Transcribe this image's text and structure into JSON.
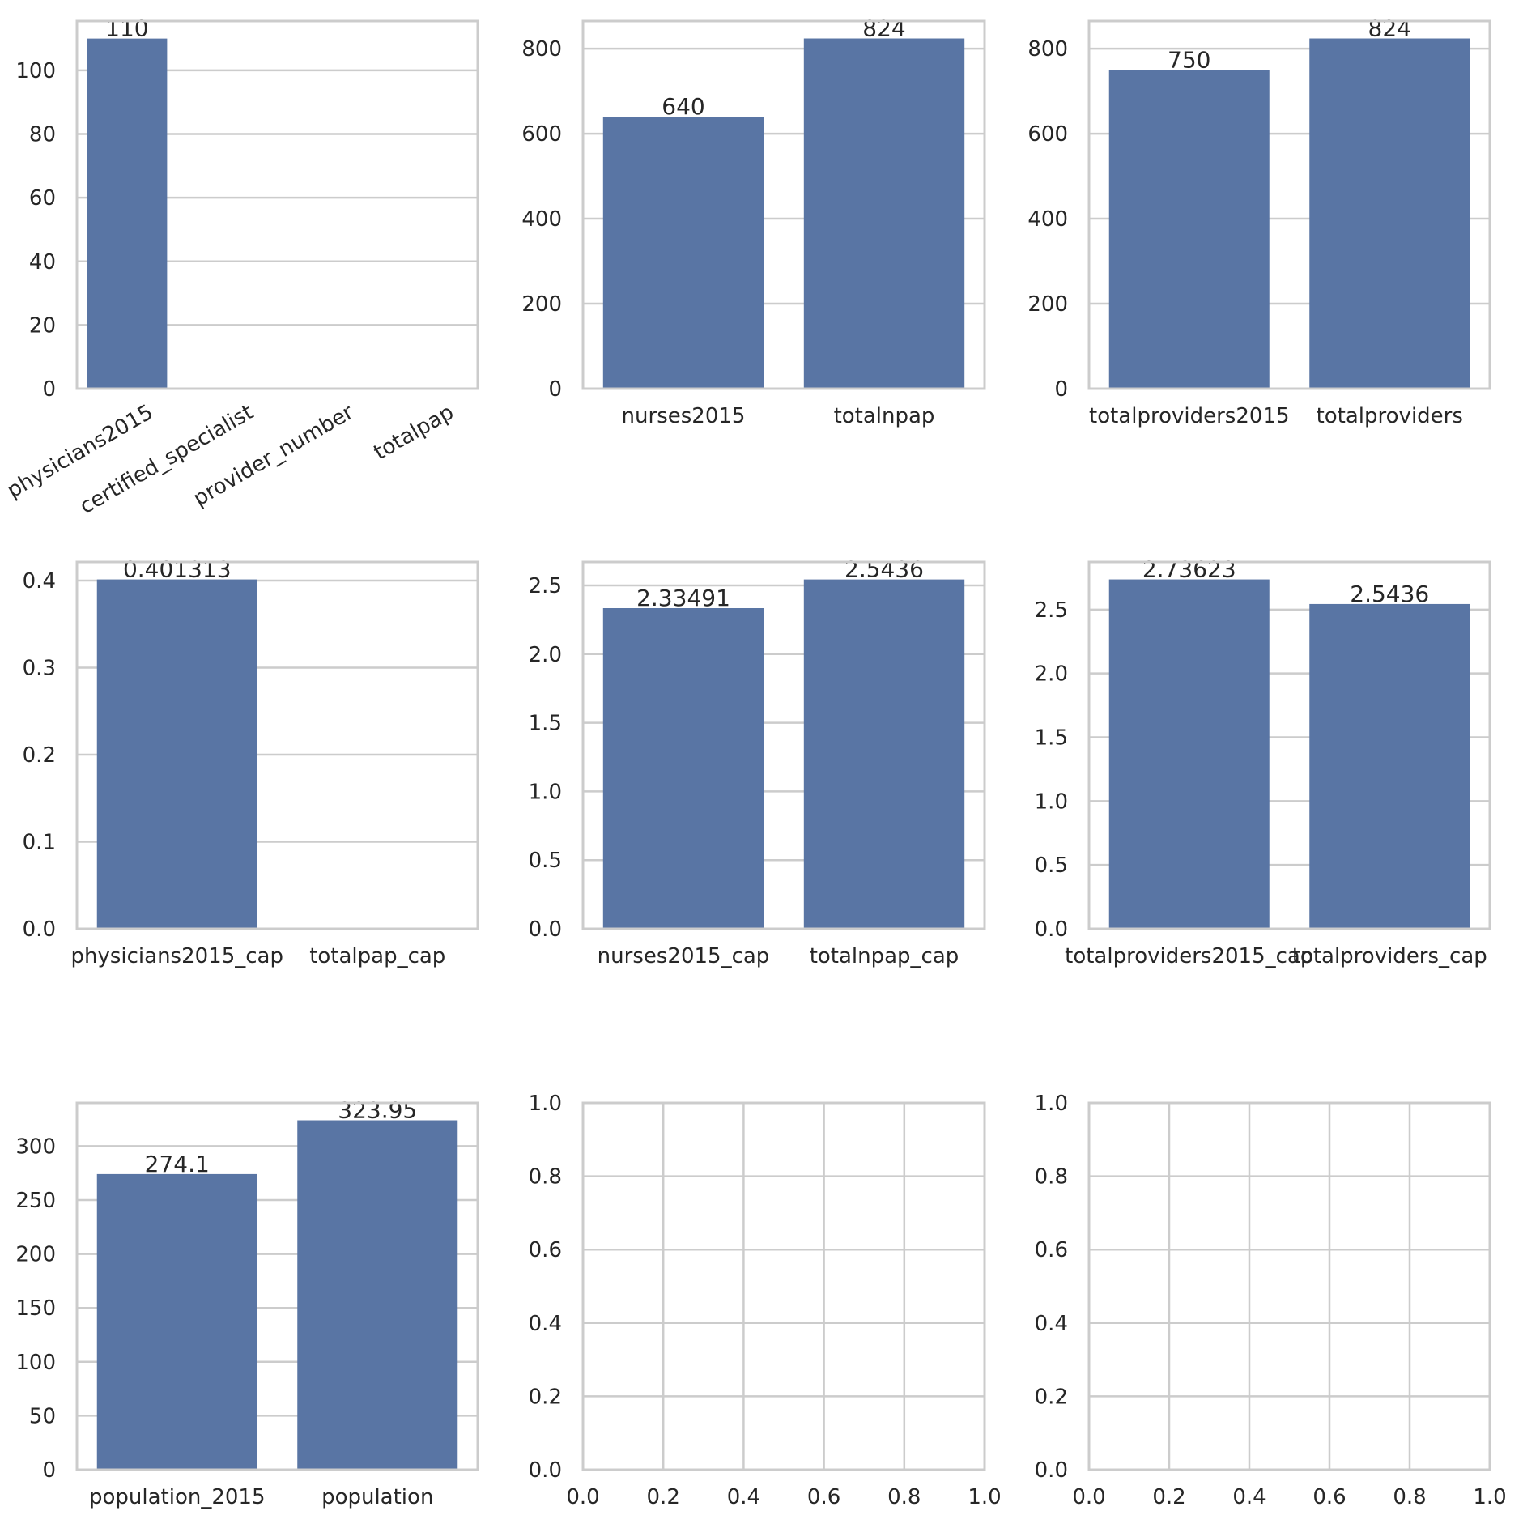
{
  "chart_data": [
    {
      "type": "bar",
      "categories": [
        "physicians2015",
        "certified_specialist",
        "provider_number",
        "totalpap"
      ],
      "values": [
        110,
        null,
        null,
        null
      ],
      "value_labels": [
        "110",
        "",
        "",
        ""
      ],
      "yticks": [
        "0",
        "20",
        "40",
        "60",
        "80",
        "100"
      ],
      "ylim": [
        0,
        115.5
      ],
      "grid": true,
      "xtick_rotation": 30,
      "color": "#5975a4"
    },
    {
      "type": "bar",
      "categories": [
        "nurses2015",
        "totalnpap"
      ],
      "values": [
        640,
        824
      ],
      "value_labels": [
        "640",
        "824"
      ],
      "yticks": [
        "0",
        "200",
        "400",
        "600",
        "800"
      ],
      "ylim": [
        0,
        865
      ],
      "grid": true,
      "color": "#5975a4"
    },
    {
      "type": "bar",
      "categories": [
        "totalproviders2015",
        "totalproviders"
      ],
      "values": [
        750,
        824
      ],
      "value_labels": [
        "750",
        "824"
      ],
      "yticks": [
        "0",
        "200",
        "400",
        "600",
        "800"
      ],
      "ylim": [
        0,
        865
      ],
      "grid": true,
      "color": "#5975a4"
    },
    {
      "type": "bar",
      "categories": [
        "physicians2015_cap",
        "totalpap_cap"
      ],
      "values": [
        0.401313,
        null
      ],
      "value_labels": [
        "0.401313",
        ""
      ],
      "yticks": [
        "0.0",
        "0.1",
        "0.2",
        "0.3",
        "0.4"
      ],
      "ylim": [
        0,
        0.4214
      ],
      "grid": true,
      "color": "#5975a4"
    },
    {
      "type": "bar",
      "categories": [
        "nurses2015_cap",
        "totalnpap_cap"
      ],
      "values": [
        2.33491,
        2.5436
      ],
      "value_labels": [
        "2.33491",
        "2.5436"
      ],
      "yticks": [
        "0.0",
        "0.5",
        "1.0",
        "1.5",
        "2.0",
        "2.5"
      ],
      "ylim": [
        0,
        2.671
      ],
      "grid": true,
      "color": "#5975a4"
    },
    {
      "type": "bar",
      "categories": [
        "totalproviders2015_cap",
        "totalproviders_cap"
      ],
      "values": [
        2.73623,
        2.5436
      ],
      "value_labels": [
        "2.73623",
        "2.5436"
      ],
      "yticks": [
        "0.0",
        "0.5",
        "1.0",
        "1.5",
        "2.0",
        "2.5"
      ],
      "ylim": [
        0,
        2.873
      ],
      "grid": true,
      "color": "#5975a4"
    },
    {
      "type": "bar",
      "categories": [
        "population_2015",
        "population"
      ],
      "values": [
        274.1,
        323.95
      ],
      "value_labels": [
        "274.1",
        "323.95"
      ],
      "yticks": [
        "0",
        "50",
        "100",
        "150",
        "200",
        "250",
        "300"
      ],
      "ylim": [
        0,
        340.1
      ],
      "grid": true,
      "color": "#5975a4"
    },
    {
      "type": "empty",
      "xticks": [
        "0.0",
        "0.2",
        "0.4",
        "0.6",
        "0.8",
        "1.0"
      ],
      "yticks": [
        "0.0",
        "0.2",
        "0.4",
        "0.6",
        "0.8",
        "1.0"
      ],
      "xlim": [
        0,
        1
      ],
      "ylim": [
        0,
        1
      ],
      "grid": true
    },
    {
      "type": "empty",
      "xticks": [
        "0.0",
        "0.2",
        "0.4",
        "0.6",
        "0.8",
        "1.0"
      ],
      "yticks": [
        "0.0",
        "0.2",
        "0.4",
        "0.6",
        "0.8",
        "1.0"
      ],
      "xlim": [
        0,
        1
      ],
      "ylim": [
        0,
        1
      ],
      "grid": true
    }
  ]
}
